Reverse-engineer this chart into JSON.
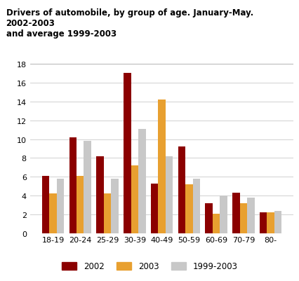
{
  "title_line1": "Drivers of automobile, by group of age. January-May. 2002-2003",
  "title_line2": "and average 1999-2003",
  "categories": [
    "18-19",
    "20-24",
    "25-29",
    "30-39",
    "40-49",
    "50-59",
    "60-69",
    "70-79",
    "80-"
  ],
  "series": {
    "2002": [
      6.1,
      10.2,
      8.2,
      17.1,
      5.3,
      9.2,
      3.2,
      4.3,
      2.2
    ],
    "2003": [
      4.2,
      6.1,
      4.2,
      7.2,
      14.2,
      5.2,
      2.1,
      3.2,
      2.2
    ],
    "1999-2003": [
      5.8,
      9.8,
      5.8,
      11.1,
      8.2,
      5.8,
      4.0,
      3.8,
      2.4
    ]
  },
  "colors": {
    "2002": "#8B0000",
    "2003": "#E8A030",
    "1999-2003": "#C8C8C8"
  },
  "ylim": [
    0,
    18
  ],
  "yticks": [
    0,
    2,
    4,
    6,
    8,
    10,
    12,
    14,
    16,
    18
  ],
  "legend_labels": [
    "2002",
    "2003",
    "1999-2003"
  ],
  "background_color": "#ffffff",
  "grid_color": "#d0d0d0"
}
